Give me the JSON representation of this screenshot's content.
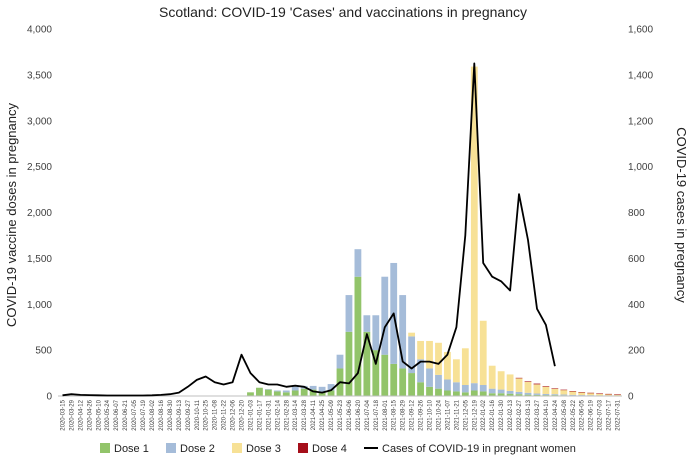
{
  "chart_data": {
    "type": "bar",
    "title": "Scotland: COVID-19 'Cases' and vaccinations in pregnancy",
    "ylabel": "COVID-19 vaccine doses in pregnancy",
    "y2label": "COVID-19 cases in pregnancy",
    "ylim": [
      0,
      4000
    ],
    "y2lim": [
      0,
      1600
    ],
    "yticks": [
      "0",
      "500",
      "1,000",
      "1,500",
      "2,000",
      "2,500",
      "3,000",
      "3,500",
      "4,000"
    ],
    "y2ticks": [
      "0",
      "200",
      "400",
      "600",
      "800",
      "1,000",
      "1,200",
      "1,400",
      "1,600"
    ],
    "categories": [
      "2020-03-15",
      "2020-03-29",
      "2020-04-12",
      "2020-04-26",
      "2020-05-10",
      "2020-05-24",
      "2020-06-07",
      "2020-06-21",
      "2020-07-05",
      "2020-07-19",
      "2020-08-02",
      "2020-08-16",
      "2020-08-30",
      "2020-09-13",
      "2020-09-27",
      "2020-10-11",
      "2020-10-25",
      "2020-11-08",
      "2020-11-22",
      "2020-12-06",
      "2020-12-20",
      "2021-01-03",
      "2021-01-17",
      "2021-01-31",
      "2021-02-14",
      "2021-02-28",
      "2021-03-14",
      "2021-03-28",
      "2021-04-11",
      "2021-04-25",
      "2021-05-09",
      "2021-05-23",
      "2021-06-06",
      "2021-06-20",
      "2021-07-04",
      "2021-07-18",
      "2021-08-01",
      "2021-08-15",
      "2021-08-29",
      "2021-09-12",
      "2021-09-26",
      "2021-10-10",
      "2021-10-24",
      "2021-11-07",
      "2021-11-21",
      "2021-12-05",
      "2021-12-19",
      "2022-01-02",
      "2022-01-16",
      "2022-01-30",
      "2022-02-13",
      "2022-02-27",
      "2022-03-13",
      "2022-03-27",
      "2022-04-10",
      "2022-04-24",
      "2022-05-08",
      "2022-05-22",
      "2022-06-05",
      "2022-06-19",
      "2022-07-03",
      "2022-07-17",
      "2022-07-31"
    ],
    "series": [
      {
        "name": "Dose 1",
        "color": "#92c46a",
        "values": [
          0,
          0,
          0,
          0,
          0,
          0,
          0,
          0,
          0,
          0,
          0,
          0,
          0,
          0,
          0,
          0,
          0,
          0,
          0,
          0,
          0,
          40,
          90,
          70,
          50,
          40,
          60,
          80,
          70,
          40,
          60,
          300,
          700,
          1300,
          700,
          500,
          450,
          350,
          300,
          250,
          150,
          100,
          80,
          60,
          50,
          40,
          60,
          50,
          30,
          30,
          25,
          20,
          15,
          12,
          10,
          10,
          8,
          6,
          5,
          5,
          4,
          4,
          3
        ]
      },
      {
        "name": "Dose 2",
        "color": "#a5bcd9",
        "values": [
          0,
          0,
          0,
          0,
          0,
          0,
          0,
          0,
          0,
          0,
          0,
          0,
          0,
          0,
          0,
          0,
          0,
          0,
          0,
          0,
          0,
          0,
          0,
          5,
          10,
          20,
          40,
          30,
          40,
          60,
          70,
          150,
          400,
          300,
          180,
          380,
          850,
          1100,
          800,
          400,
          250,
          200,
          150,
          120,
          100,
          80,
          80,
          70,
          50,
          40,
          30,
          25,
          20,
          15,
          12,
          10,
          8,
          6,
          5,
          4,
          3,
          3,
          2
        ]
      },
      {
        "name": "Dose 3",
        "color": "#f7e196",
        "values": [
          0,
          0,
          0,
          0,
          0,
          0,
          0,
          0,
          0,
          0,
          0,
          0,
          0,
          0,
          0,
          0,
          0,
          0,
          0,
          0,
          0,
          0,
          0,
          0,
          0,
          0,
          0,
          0,
          0,
          0,
          0,
          0,
          0,
          0,
          0,
          0,
          0,
          0,
          0,
          40,
          200,
          300,
          350,
          300,
          250,
          400,
          3450,
          700,
          250,
          200,
          180,
          150,
          120,
          100,
          80,
          60,
          50,
          40,
          30,
          25,
          20,
          15,
          12
        ]
      },
      {
        "name": "Dose 4",
        "color": "#a50e1a",
        "values": [
          0,
          0,
          0,
          0,
          0,
          0,
          0,
          0,
          0,
          0,
          0,
          0,
          0,
          0,
          0,
          0,
          0,
          0,
          0,
          0,
          0,
          0,
          0,
          0,
          0,
          0,
          0,
          0,
          0,
          0,
          0,
          0,
          0,
          0,
          0,
          0,
          0,
          0,
          0,
          0,
          0,
          0,
          0,
          0,
          0,
          0,
          0,
          0,
          0,
          0,
          0,
          3,
          6,
          8,
          6,
          4,
          3,
          2,
          2,
          1,
          1,
          1,
          1
        ]
      },
      {
        "name": "Cases of COVID-19 in pregnant women",
        "type": "line",
        "axis": "y2",
        "color": "#000000",
        "values": [
          3,
          8,
          5,
          4,
          3,
          2,
          2,
          2,
          2,
          2,
          3,
          5,
          8,
          15,
          40,
          70,
          85,
          60,
          50,
          60,
          180,
          100,
          60,
          50,
          50,
          40,
          45,
          40,
          20,
          15,
          25,
          60,
          55,
          100,
          270,
          140,
          300,
          360,
          150,
          120,
          150,
          150,
          140,
          180,
          300,
          700,
          1450,
          580,
          520,
          500,
          460,
          880,
          680,
          380,
          310,
          130,
          null,
          null,
          null,
          null,
          null,
          null,
          null
        ]
      }
    ],
    "legend_position": "bottom",
    "grid": false
  }
}
